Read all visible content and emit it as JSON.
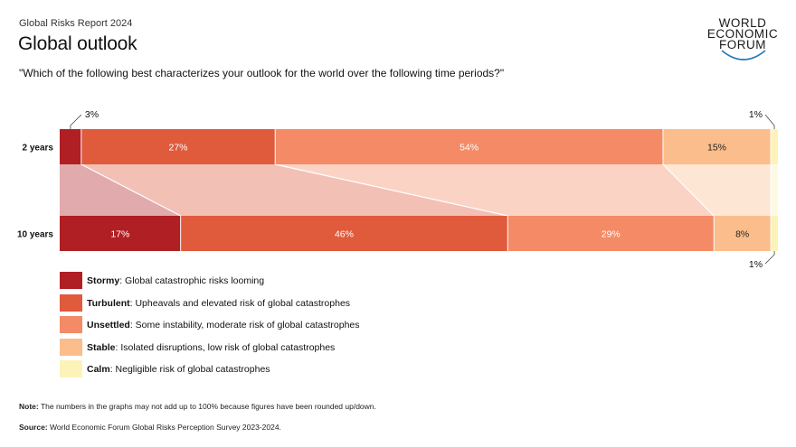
{
  "header": {
    "report": "Global Risks Report 2024",
    "title": "Global outlook",
    "question": "\"Which of the following best characterizes your outlook for the world over the following time periods?\""
  },
  "logo": {
    "line1": "WORLD",
    "line2": "ECONOMIC",
    "line3": "FORUM"
  },
  "chart_data": {
    "type": "bar",
    "orientation": "horizontal-stacked-100",
    "categories": [
      "2 years",
      "10 years"
    ],
    "series": [
      {
        "name": "Stormy",
        "color": "#b01f24",
        "values": [
          3,
          17
        ],
        "labels": [
          "3%",
          "17%"
        ]
      },
      {
        "name": "Turbulent",
        "color": "#e05a3c",
        "values": [
          27,
          46
        ],
        "labels": [
          "27%",
          "46%"
        ]
      },
      {
        "name": "Unsettled",
        "color": "#f48b66",
        "values": [
          54,
          29
        ],
        "labels": [
          "54%",
          "29%"
        ]
      },
      {
        "name": "Stable",
        "color": "#fbbd8b",
        "values": [
          15,
          8
        ],
        "labels": [
          "15%",
          "8%"
        ]
      },
      {
        "name": "Calm",
        "color": "#fbf3b8",
        "values": [
          1,
          1
        ],
        "labels": [
          "1%",
          "1%"
        ]
      }
    ]
  },
  "legend": [
    {
      "name": "Stormy",
      "desc": ": Global catastrophic risks looming",
      "color": "#b01f24"
    },
    {
      "name": "Turbulent",
      "desc": ": Upheavals and elevated risk of global catastrophes",
      "color": "#e05a3c"
    },
    {
      "name": "Unsettled",
      "desc": ": Some instability, moderate risk of global catastrophes",
      "color": "#f48b66"
    },
    {
      "name": "Stable",
      "desc": ": Isolated disruptions, low risk of global catastrophes",
      "color": "#fbbd8b"
    },
    {
      "name": "Calm",
      "desc": ": Negligible risk of global catastrophes",
      "color": "#fbf3b8"
    }
  ],
  "footer": {
    "note_label": "Note:",
    "note_text": " The numbers in the graphs may not add up to 100% because figures have been rounded up/down.",
    "source_label": "Source:",
    "source_text": " World Economic Forum Global Risks Perception Survey 2023-2024."
  }
}
